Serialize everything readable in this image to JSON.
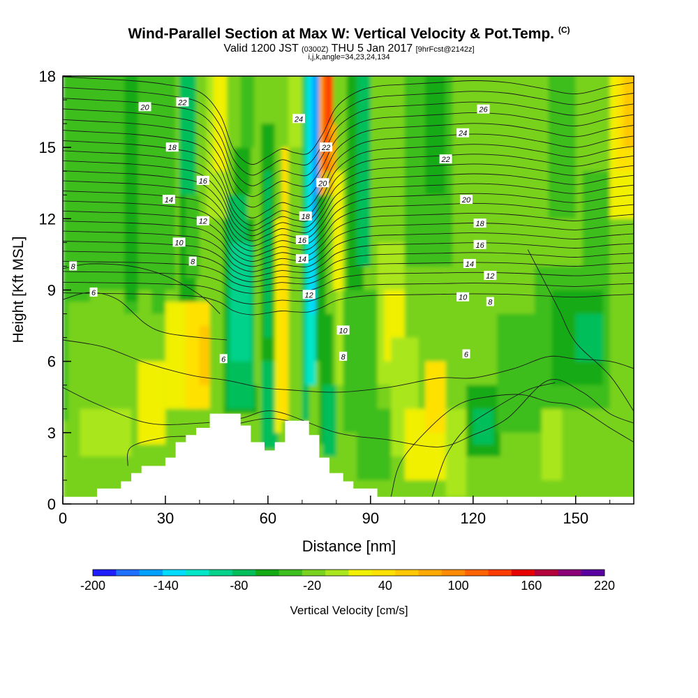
{
  "header": {
    "title": "Wind-Parallel Section at Max W: Vertical Velocity & Pot.Temp.",
    "copyright": "(C)",
    "valid_prefix": "Valid 1200 JST",
    "valid_utc": "(0300Z)",
    "valid_date": "THU 5 Jan 2017",
    "forecast": "[9hrFcst@2142z]",
    "indices": "i,j,k,angle=34,23,24,134"
  },
  "chart_data": {
    "type": "heatmap",
    "xlabel": "Distance [nm]",
    "ylabel": "Height [Kft MSL]",
    "xlim": [
      0,
      167
    ],
    "ylim": [
      0,
      18
    ],
    "xticks": [
      0,
      30,
      60,
      90,
      120,
      150
    ],
    "yticks": [
      0,
      3,
      6,
      9,
      12,
      15,
      18
    ],
    "colorbar": {
      "label": "Vertical Velocity [cm/s]",
      "min": -200,
      "max": 220,
      "step": 20,
      "tick_labels": [
        -200,
        -140,
        -80,
        -20,
        40,
        100,
        160,
        220
      ],
      "colors": [
        "#1e1eff",
        "#1e6eff",
        "#00a0ff",
        "#00dcff",
        "#00e6c8",
        "#00d28c",
        "#00be5a",
        "#14aa14",
        "#3cbe1e",
        "#78d21e",
        "#aae61e",
        "#f0f000",
        "#ffe100",
        "#ffc800",
        "#ffaa00",
        "#ff8c00",
        "#ff6400",
        "#ff3c00",
        "#e60000",
        "#b4003c",
        "#8c0078",
        "#5a00a0"
      ]
    },
    "terrain": [
      [
        0,
        0.3
      ],
      [
        10,
        0.3
      ],
      [
        10,
        0.65
      ],
      [
        17,
        0.65
      ],
      [
        17,
        0.95
      ],
      [
        20,
        0.95
      ],
      [
        20,
        1.3
      ],
      [
        23,
        1.3
      ],
      [
        23,
        1.6
      ],
      [
        30,
        1.6
      ],
      [
        30,
        1.95
      ],
      [
        33,
        1.95
      ],
      [
        33,
        2.6
      ],
      [
        36,
        2.6
      ],
      [
        36,
        2.9
      ],
      [
        39,
        2.9
      ],
      [
        39,
        3.2
      ],
      [
        43,
        3.2
      ],
      [
        43,
        3.8
      ],
      [
        52,
        3.8
      ],
      [
        52,
        3.3
      ],
      [
        55,
        3.3
      ],
      [
        55,
        2.6
      ],
      [
        59,
        2.6
      ],
      [
        59,
        2.25
      ],
      [
        62,
        2.25
      ],
      [
        62,
        2.6
      ],
      [
        65,
        2.6
      ],
      [
        65,
        3.5
      ],
      [
        72,
        3.5
      ],
      [
        72,
        2.9
      ],
      [
        75,
        2.9
      ],
      [
        75,
        1.95
      ],
      [
        78,
        1.95
      ],
      [
        78,
        1.3
      ],
      [
        82,
        1.3
      ],
      [
        82,
        0.95
      ],
      [
        85,
        0.95
      ],
      [
        85,
        0.65
      ],
      [
        92,
        0.65
      ],
      [
        92,
        0.3
      ],
      [
        167,
        0.3
      ]
    ],
    "field": [
      {
        "x": [
          0,
          168
        ],
        "y": [
          0,
          18.1
        ],
        "v": -10
      },
      {
        "x": [
          0,
          1.5
        ],
        "y": [
          3.5,
          18.1
        ],
        "v": -30
      },
      {
        "x": [
          1.5,
          8
        ],
        "y": [
          8.5,
          18.1
        ],
        "v": -30
      },
      {
        "x": [
          8,
          18
        ],
        "y": [
          9,
          18.1
        ],
        "v": -30
      },
      {
        "x": [
          18,
          22
        ],
        "y": [
          8,
          18.1
        ],
        "v": -30
      },
      {
        "x": [
          22,
          26
        ],
        "y": [
          9,
          18.1
        ],
        "v": -30
      },
      {
        "x": [
          26,
          30
        ],
        "y": [
          8,
          18.1
        ],
        "v": -30
      },
      {
        "x": [
          30,
          33
        ],
        "y": [
          9,
          18.1
        ],
        "v": -30
      },
      {
        "x": [
          18,
          22
        ],
        "y": [
          8.5,
          18.1
        ],
        "v": -50
      },
      {
        "x": [
          34,
          39
        ],
        "y": [
          8.5,
          18.1
        ],
        "v": -50
      },
      {
        "x": [
          34,
          39
        ],
        "y": [
          13,
          18.1
        ],
        "v": -70
      },
      {
        "x": [
          36,
          40
        ],
        "y": [
          9.5,
          13
        ],
        "v": -30
      },
      {
        "x": [
          40,
          46
        ],
        "y": [
          9.5,
          18.1
        ],
        "v": -10
      },
      {
        "x": [
          42,
          48
        ],
        "y": [
          12,
          18.1
        ],
        "v": 10
      },
      {
        "x": [
          44,
          48
        ],
        "y": [
          14,
          18.1
        ],
        "v": 30
      },
      {
        "x": [
          30,
          40
        ],
        "y": [
          4,
          8.5
        ],
        "v": 30
      },
      {
        "x": [
          36,
          43
        ],
        "y": [
          4,
          8.5
        ],
        "v": 50
      },
      {
        "x": [
          40,
          43
        ],
        "y": [
          5,
          7.5
        ],
        "v": 70
      },
      {
        "x": [
          22,
          30
        ],
        "y": [
          2.5,
          6
        ],
        "v": 30
      },
      {
        "x": [
          5,
          20
        ],
        "y": [
          2,
          4
        ],
        "v": 10
      },
      {
        "x": [
          47,
          57
        ],
        "y": [
          3.8,
          12
        ],
        "v": -50
      },
      {
        "x": [
          48,
          56
        ],
        "y": [
          4,
          11
        ],
        "v": -70
      },
      {
        "x": [
          49,
          55
        ],
        "y": [
          6,
          11
        ],
        "v": -90
      },
      {
        "x": [
          48,
          54
        ],
        "y": [
          11,
          13
        ],
        "v": -70
      },
      {
        "x": [
          50,
          55
        ],
        "y": [
          13,
          15
        ],
        "v": -50
      },
      {
        "x": [
          52,
          56
        ],
        "y": [
          15,
          18.1
        ],
        "v": -30
      },
      {
        "x": [
          56,
          58
        ],
        "y": [
          5,
          18.1
        ],
        "v": -10
      },
      {
        "x": [
          58,
          62
        ],
        "y": [
          6,
          16
        ],
        "v": -50
      },
      {
        "x": [
          59,
          61
        ],
        "y": [
          7,
          14
        ],
        "v": -70
      },
      {
        "x": [
          58,
          63
        ],
        "y": [
          2.3,
          6
        ],
        "v": -70
      },
      {
        "x": [
          62,
          64
        ],
        "y": [
          3,
          12
        ],
        "v": 30
      },
      {
        "x": [
          63,
          66
        ],
        "y": [
          3.5,
          10
        ],
        "v": 50
      },
      {
        "x": [
          64,
          66
        ],
        "y": [
          8,
          15
        ],
        "v": 50
      },
      {
        "x": [
          66,
          70
        ],
        "y": [
          15,
          18.1
        ],
        "v": 10
      },
      {
        "x": [
          70,
          72
        ],
        "y": [
          3.5,
          18.1
        ],
        "v": -70
      },
      {
        "x": [
          71,
          74
        ],
        "y": [
          5,
          18.1
        ],
        "v": -110
      },
      {
        "x": [
          72,
          75
        ],
        "y": [
          8,
          18.1
        ],
        "v": -130
      },
      {
        "x": [
          73,
          75
        ],
        "y": [
          12,
          18.1
        ],
        "v": -150
      },
      {
        "x": [
          74,
          77
        ],
        "y": [
          6,
          13
        ],
        "v": -50
      },
      {
        "x": [
          75,
          79
        ],
        "y": [
          2.5,
          8
        ],
        "v": -50
      },
      {
        "x": [
          76,
          80
        ],
        "y": [
          2,
          5
        ],
        "v": -70
      },
      {
        "x": [
          75,
          77
        ],
        "y": [
          13,
          18.1
        ],
        "v": 90
      },
      {
        "x": [
          76,
          78
        ],
        "y": [
          14,
          18.1
        ],
        "v": 130
      },
      {
        "x": [
          77,
          79
        ],
        "y": [
          15,
          18.1
        ],
        "v": 150
      },
      {
        "x": [
          78,
          80
        ],
        "y": [
          13,
          16
        ],
        "v": 90
      },
      {
        "x": [
          79,
          82
        ],
        "y": [
          9,
          14
        ],
        "v": 30
      },
      {
        "x": [
          80,
          84
        ],
        "y": [
          5,
          9
        ],
        "v": 10
      },
      {
        "x": [
          83,
          88
        ],
        "y": [
          9,
          18.1
        ],
        "v": -50
      },
      {
        "x": [
          86,
          90
        ],
        "y": [
          10,
          18.1
        ],
        "v": -70
      },
      {
        "x": [
          82,
          92
        ],
        "y": [
          3,
          9
        ],
        "v": -30
      },
      {
        "x": [
          86,
          96
        ],
        "y": [
          1,
          4
        ],
        "v": -30
      },
      {
        "x": [
          92,
          100
        ],
        "y": [
          5,
          11
        ],
        "v": 10
      },
      {
        "x": [
          94,
          100
        ],
        "y": [
          6,
          9
        ],
        "v": 30
      },
      {
        "x": [
          96,
          104
        ],
        "y": [
          2,
          7
        ],
        "v": 10
      },
      {
        "x": [
          100,
          112
        ],
        "y": [
          1,
          4
        ],
        "v": 30
      },
      {
        "x": [
          106,
          112
        ],
        "y": [
          3,
          6
        ],
        "v": 50
      },
      {
        "x": [
          112,
          118
        ],
        "y": [
          0.3,
          4
        ],
        "v": 10
      },
      {
        "x": [
          100,
          114
        ],
        "y": [
          10,
          18.1
        ],
        "v": -30
      },
      {
        "x": [
          106,
          112
        ],
        "y": [
          13,
          18.1
        ],
        "v": -50
      },
      {
        "x": [
          118,
          128
        ],
        "y": [
          2,
          5
        ],
        "v": -50
      },
      {
        "x": [
          120,
          126
        ],
        "y": [
          2.5,
          4
        ],
        "v": -70
      },
      {
        "x": [
          127,
          142
        ],
        "y": [
          3,
          8
        ],
        "v": -30
      },
      {
        "x": [
          138,
          160
        ],
        "y": [
          4,
          10
        ],
        "v": -30
      },
      {
        "x": [
          143,
          158
        ],
        "y": [
          5,
          9
        ],
        "v": -50
      },
      {
        "x": [
          150,
          158
        ],
        "y": [
          6,
          8
        ],
        "v": -70
      },
      {
        "x": [
          142,
          150
        ],
        "y": [
          12,
          18.1
        ],
        "v": -30
      },
      {
        "x": [
          152,
          160
        ],
        "y": [
          10,
          14
        ],
        "v": -30
      },
      {
        "x": [
          140,
          146
        ],
        "y": [
          1,
          4
        ],
        "v": 10
      },
      {
        "x": [
          160,
          168
        ],
        "y": [
          12,
          18.1
        ],
        "v": 30
      },
      {
        "x": [
          162,
          168
        ],
        "y": [
          14,
          18.1
        ],
        "v": 50
      },
      {
        "x": [
          164,
          168
        ],
        "y": [
          15,
          18.1
        ],
        "v": 70
      }
    ],
    "isentrope_labels": [
      {
        "text": "20",
        "x": 24,
        "y": 16.7
      },
      {
        "text": "22",
        "x": 35,
        "y": 16.9
      },
      {
        "text": "18",
        "x": 32,
        "y": 15.0
      },
      {
        "text": "16",
        "x": 41,
        "y": 13.6
      },
      {
        "text": "14",
        "x": 31,
        "y": 12.8
      },
      {
        "text": "12",
        "x": 41,
        "y": 11.9
      },
      {
        "text": "10",
        "x": 34,
        "y": 11.0
      },
      {
        "text": "8",
        "x": 3,
        "y": 10.0
      },
      {
        "text": "8",
        "x": 38,
        "y": 10.2
      },
      {
        "text": "6",
        "x": 9,
        "y": 8.9
      },
      {
        "text": "6",
        "x": 47,
        "y": 6.1
      },
      {
        "text": "24",
        "x": 69,
        "y": 16.2
      },
      {
        "text": "22",
        "x": 77,
        "y": 15.0
      },
      {
        "text": "20",
        "x": 76,
        "y": 13.5
      },
      {
        "text": "18",
        "x": 71,
        "y": 12.1
      },
      {
        "text": "16",
        "x": 70,
        "y": 11.1
      },
      {
        "text": "14",
        "x": 70,
        "y": 10.3
      },
      {
        "text": "12",
        "x": 72,
        "y": 8.8
      },
      {
        "text": "10",
        "x": 82,
        "y": 7.3
      },
      {
        "text": "8",
        "x": 82,
        "y": 6.2
      },
      {
        "text": "26",
        "x": 123,
        "y": 16.6
      },
      {
        "text": "24",
        "x": 117,
        "y": 15.6
      },
      {
        "text": "22",
        "x": 112,
        "y": 14.5
      },
      {
        "text": "20",
        "x": 118,
        "y": 12.8
      },
      {
        "text": "18",
        "x": 122,
        "y": 11.8
      },
      {
        "text": "16",
        "x": 122,
        "y": 10.9
      },
      {
        "text": "14",
        "x": 119,
        "y": 10.1
      },
      {
        "text": "12",
        "x": 125,
        "y": 9.6
      },
      {
        "text": "10",
        "x": 117,
        "y": 8.7
      },
      {
        "text": "8",
        "x": 125,
        "y": 8.5
      },
      {
        "text": "6",
        "x": 118,
        "y": 6.3
      }
    ]
  }
}
